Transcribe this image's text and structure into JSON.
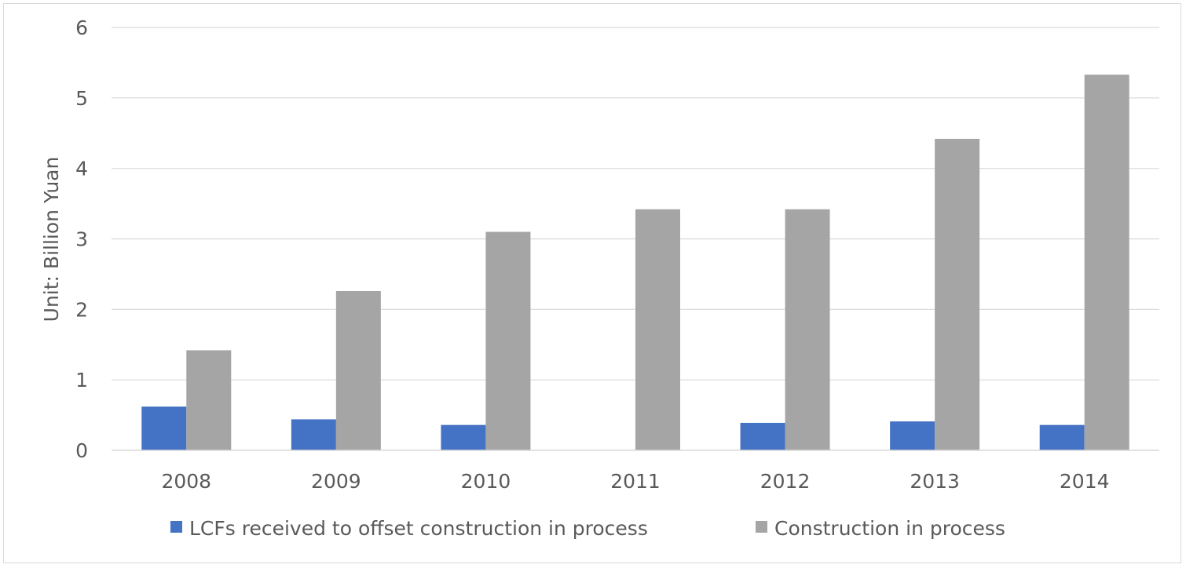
{
  "chart_data": {
    "type": "bar",
    "title": "",
    "xlabel": "",
    "ylabel": "Unit: Billion Yuan",
    "ylim": [
      0,
      6
    ],
    "yticks": [
      0,
      1,
      2,
      3,
      4,
      5,
      6
    ],
    "grid": true,
    "legend_position": "bottom",
    "categories": [
      "2008",
      "2009",
      "2010",
      "2011",
      "2012",
      "2013",
      "2014"
    ],
    "series": [
      {
        "name": "LCFs received to offset construction in process",
        "color": "#4472c4",
        "values": [
          0.62,
          0.44,
          0.36,
          0,
          0.39,
          0.41,
          0.36
        ]
      },
      {
        "name": "Construction in process",
        "color": "#a5a5a5",
        "values": [
          1.42,
          2.26,
          3.1,
          3.42,
          3.42,
          4.42,
          5.33
        ]
      }
    ]
  }
}
